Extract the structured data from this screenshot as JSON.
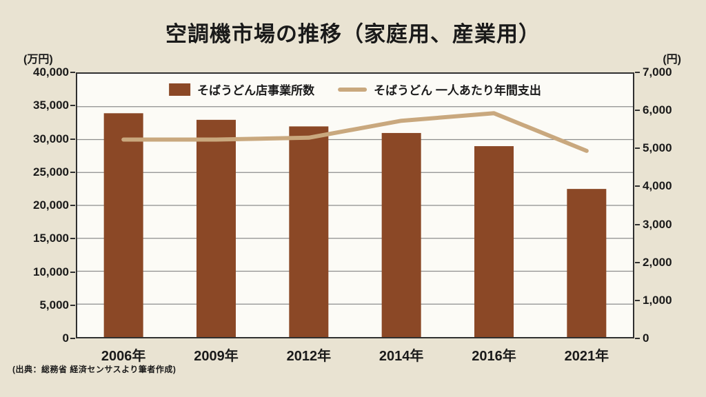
{
  "title": "空調機市場の推移（家庭用、産業用）",
  "source": "(出典：総務省 経済センサスより筆者作成)",
  "legend": {
    "bar_label": "そばうどん店事業所数",
    "line_label": "そばうどん 一人あたり年間支出"
  },
  "left_axis": {
    "unit": "(万円)",
    "ticks": [
      "40,000",
      "35,000",
      "30,000",
      "25,000",
      "20,000",
      "15,000",
      "10,000",
      "5,000",
      "0"
    ],
    "max": 40000
  },
  "right_axis": {
    "unit": "(円)",
    "ticks": [
      "7,000",
      "6,000",
      "5,000",
      "4,000",
      "3,000",
      "2,000",
      "1,000",
      "0"
    ],
    "max": 7000
  },
  "chart_data": {
    "type": "bar+line",
    "categories": [
      "2006年",
      "2009年",
      "2012年",
      "2014年",
      "2016年",
      "2021年"
    ],
    "series": [
      {
        "name": "そばうどん店事業所数",
        "type": "bar",
        "axis": "left",
        "values": [
          34000,
          33000,
          32000,
          31000,
          29000,
          22500
        ],
        "color": "#8B4826"
      },
      {
        "name": "そばうどん 一人あたり年間支出",
        "type": "line",
        "axis": "right",
        "values": [
          5250,
          5250,
          5300,
          5750,
          5950,
          4950
        ],
        "color": "#C9A87E"
      }
    ],
    "left_ylim": [
      0,
      40000
    ],
    "right_ylim": [
      0,
      7000
    ],
    "grid": true,
    "legend_position": "top-center",
    "gridline_color": "#8C8C8C",
    "plot_background": "#FCFBF6",
    "page_background": "#E9E3D2"
  }
}
